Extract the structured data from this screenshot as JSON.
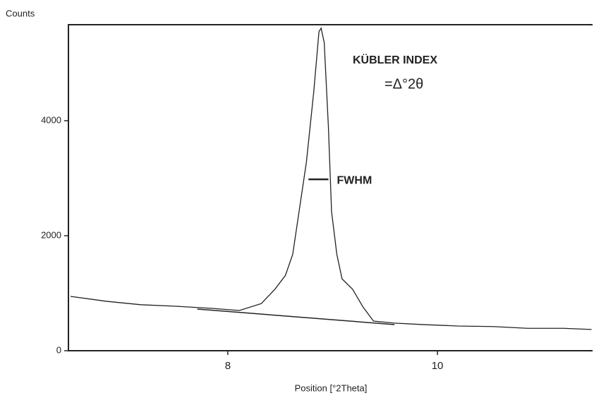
{
  "chart_data": {
    "type": "line",
    "xlabel": "Position [°2Theta]",
    "ylabel": "Counts",
    "annotations": [
      "KÜBLER INDEX",
      "=Δ°2θ"
    ],
    "fwhm": {
      "text": "FWHM",
      "x": [
        8.77,
        8.96
      ],
      "y": 2980
    },
    "baseline": {
      "x": [
        7.71,
        9.59
      ],
      "values": [
        724,
        454
      ]
    },
    "x": [
      6.5,
      6.84,
      7.17,
      7.51,
      7.85,
      8.11,
      8.32,
      8.45,
      8.55,
      8.62,
      8.68,
      8.75,
      8.82,
      8.87,
      8.89,
      8.92,
      8.96,
      8.99,
      9.04,
      9.09,
      9.19,
      9.29,
      9.39,
      9.59,
      9.86,
      10.19,
      10.53,
      10.86,
      11.2,
      11.47
    ],
    "series": [
      {
        "color": "#222222",
        "values": [
          945,
          860,
          800,
          773,
          736,
          700,
          820,
          1070,
          1310,
          1680,
          2420,
          3280,
          4500,
          5550,
          5610,
          5360,
          3890,
          2420,
          1680,
          1250,
          1070,
          760,
          515,
          480,
          455,
          430,
          420,
          390,
          390,
          370
        ]
      }
    ],
    "xlim": [
      6.48,
      11.48
    ],
    "ylim": [
      0,
      5670
    ],
    "xticks": [
      8,
      10
    ],
    "yticks": [
      0,
      2000,
      4000
    ]
  }
}
